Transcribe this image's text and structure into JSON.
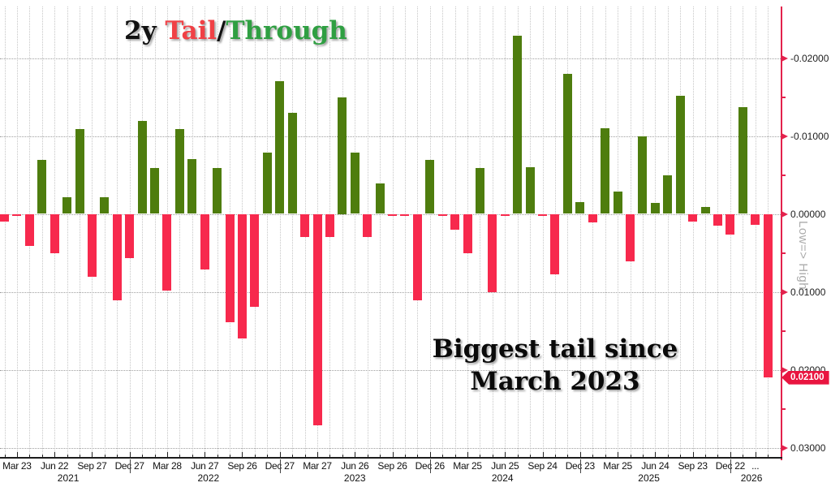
{
  "title": {
    "prefix": "2y ",
    "tail_word": "Tail",
    "slash": "/",
    "through_word": "Through"
  },
  "annotation": {
    "line1": "Biggest tail since",
    "line2": "March 2023"
  },
  "axis_right": {
    "title": "Low=> High",
    "tick_labels": [
      "-0.02000",
      "-0.01000",
      "0.00000",
      "0.01000",
      "0.02000",
      "0.03000"
    ],
    "tick_values": [
      -0.02,
      -0.01,
      0.0,
      0.01,
      0.02,
      0.03
    ],
    "minor_tick_values": [
      -0.015,
      -0.005,
      0.005,
      0.015,
      0.025
    ],
    "last_value_tag": "0.02100",
    "last_value": 0.021
  },
  "colors": {
    "tail_red": "#f7294d",
    "through_green": "#4e7d0e",
    "axis_red": "#e3224c",
    "tag_red": "#e91540",
    "title_red": "#f04045",
    "title_green": "#2f9f42"
  },
  "chart_data": {
    "type": "bar",
    "description": "2y Treasury auction Tail (positive, red, plotted downward) / Through (negative, green, plotted upward); axis inverted Low=>High",
    "ylim": [
      -0.025,
      0.031
    ],
    "grid": true,
    "values": [
      0.001,
      0.0003,
      0.0041,
      -0.0069,
      0.0051,
      -0.0021,
      -0.0109,
      0.0081,
      -0.0021,
      0.0111,
      0.0057,
      -0.0119,
      -0.0059,
      0.0098,
      -0.0109,
      -0.007,
      0.0071,
      -0.0059,
      0.0139,
      0.016,
      0.0119,
      -0.0079,
      -0.017,
      -0.013,
      0.003,
      0.0271,
      0.003,
      -0.015,
      -0.0079,
      0.003,
      -0.0039,
      0.0002,
      0.0002,
      0.0111,
      -0.0069,
      0.0002,
      0.002,
      0.0051,
      -0.0059,
      0.0101,
      0.0002,
      -0.0229,
      -0.006,
      0.0002,
      0.0078,
      -0.018,
      -0.0015,
      0.0011,
      -0.011,
      -0.0029,
      0.0061,
      -0.0099,
      -0.0014,
      -0.0049,
      -0.0152,
      0.001,
      -0.0009,
      0.0015,
      0.0027,
      -0.0137,
      0.0014,
      0.021
    ],
    "x_tick_labels": [
      {
        "text": "Mar 23",
        "bar": 1
      },
      {
        "text": "Jun 22",
        "bar": 4
      },
      {
        "text": "Sep 27",
        "bar": 7
      },
      {
        "text": "Dec 27",
        "bar": 10
      },
      {
        "text": "Mar 28",
        "bar": 13
      },
      {
        "text": "Jun 27",
        "bar": 16
      },
      {
        "text": "Sep 26",
        "bar": 19
      },
      {
        "text": "Dec 27",
        "bar": 22
      },
      {
        "text": "Mar 27",
        "bar": 25
      },
      {
        "text": "Jun 26",
        "bar": 28
      },
      {
        "text": "Sep 26",
        "bar": 31
      },
      {
        "text": "Dec 26",
        "bar": 34
      },
      {
        "text": "Mar 25",
        "bar": 37
      },
      {
        "text": "Jun 25",
        "bar": 40
      },
      {
        "text": "Sep 24",
        "bar": 43
      },
      {
        "text": "Dec 23",
        "bar": 46
      },
      {
        "text": "Mar 25",
        "bar": 49
      },
      {
        "text": "Jun 24",
        "bar": 52
      },
      {
        "text": "Sep 23",
        "bar": 55
      },
      {
        "text": "Dec 22",
        "bar": 58
      },
      {
        "text": "...",
        "bar": 60
      }
    ],
    "year_labels": [
      {
        "text": "2021",
        "center_bar": 5.1
      },
      {
        "text": "2022",
        "center_bar": 16.3
      },
      {
        "text": "2023",
        "center_bar": 28.0
      },
      {
        "text": "2024",
        "center_bar": 39.8
      },
      {
        "text": "2025",
        "center_bar": 51.5
      },
      {
        "text": "2026",
        "center_bar": 59.7
      }
    ],
    "year_divider_bars": [
      10,
      22,
      34,
      46,
      58
    ]
  }
}
